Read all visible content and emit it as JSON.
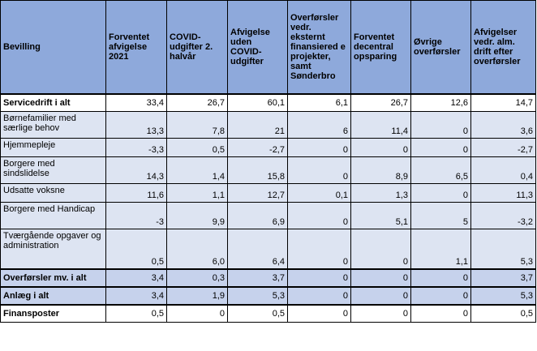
{
  "headers": [
    "Bevilling",
    "Forventet afvigelse 2021",
    "COVID-udgifter 2. halvår",
    "Afvigelse uden COVID-udgifter",
    "Overførsler vedr. eksternt finansiered e projekter, samt Sønderbro",
    "Forventet decentral opsparing",
    "Øvrige overførsler",
    "Afvigelser vedr. alm. drift efter overførsler"
  ],
  "rows": [
    {
      "label": "Servicedrift i alt",
      "values": [
        "33,4",
        "26,7",
        "60,1",
        "6,1",
        "26,7",
        "12,6",
        "14,7"
      ]
    },
    {
      "label": "Børnefamilier med særlige behov",
      "values": [
        "13,3",
        "7,8",
        "21",
        "6",
        "11,4",
        "0",
        "3,6"
      ]
    },
    {
      "label": "Hjemmepleje",
      "values": [
        "-3,3",
        "0,5",
        "-2,7",
        "0",
        "0",
        "0",
        "-2,7"
      ]
    },
    {
      "label": "Borgere med sindslidelse",
      "values": [
        "14,3",
        "1,4",
        "15,8",
        "0",
        "8,9",
        "6,5",
        "0,4"
      ]
    },
    {
      "label": "Udsatte voksne",
      "values": [
        "11,6",
        "1,1",
        "12,7",
        "0,1",
        "1,3",
        "0",
        "11,3"
      ]
    },
    {
      "label": "Borgere med Handicap",
      "values": [
        "-3",
        "9,9",
        "6,9",
        "0",
        "5,1",
        "5",
        "-3,2"
      ]
    },
    {
      "label": "Tværgående opgaver og administration",
      "values": [
        "0,5",
        "6,0",
        "6,4",
        "0",
        "0",
        "1,1",
        "5,3"
      ]
    },
    {
      "label": "Overførsler mv. i alt",
      "values": [
        "3,4",
        "0,3",
        "3,7",
        "0",
        "0",
        "0",
        "3,7"
      ]
    },
    {
      "label": "Anlæg i alt",
      "values": [
        "3,4",
        "1,9",
        "5,3",
        "0",
        "0",
        "0",
        "5,3"
      ]
    },
    {
      "label": "Finansposter",
      "values": [
        "0,5",
        "0",
        "0,5",
        "0",
        "0",
        "0",
        "0,5"
      ]
    }
  ],
  "colors": {
    "header_bg": "#8ea9db",
    "row_light": "#dde4f2",
    "row_mid": "#c6d2ec",
    "row_white": "#ffffff"
  }
}
